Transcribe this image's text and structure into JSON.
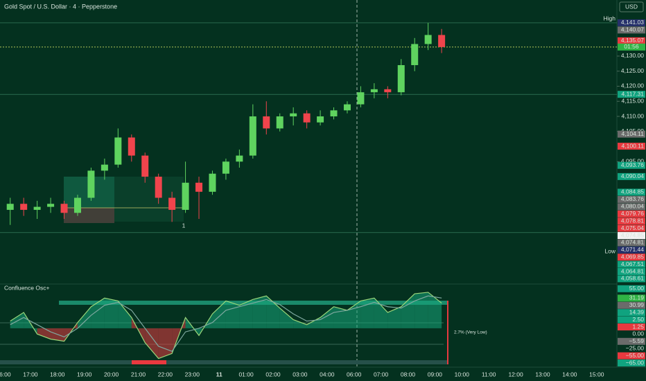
{
  "chart_data": [
    {
      "type": "candlestick",
      "title": "Gold Spot / U.S. Dollar · 4 · Pepperstone",
      "currency": "USD",
      "countdown": "01:56",
      "annotation": "1",
      "up_color": "#5fd35f",
      "down_color": "#f0444c",
      "ylim": [
        4054.4,
        4148.6
      ],
      "yticks": [
        {
          "value": 4130,
          "label": "4,130.00"
        },
        {
          "value": 4125,
          "label": "4,125.00"
        },
        {
          "value": 4120,
          "label": "4,120.00"
        },
        {
          "value": 4115,
          "label": "4,115.00"
        },
        {
          "value": 4110,
          "label": "4,110.00"
        },
        {
          "value": 4105,
          "label": "4,105.00"
        },
        {
          "value": 4095,
          "label": "4,095.00"
        }
      ],
      "xticks": [
        "16:00",
        "17:00",
        "18:00",
        "19:00",
        "20:00",
        "21:00",
        "22:00",
        "23:00",
        "11",
        "01:00",
        "02:00",
        "03:00",
        "04:00",
        "06:00",
        "07:00",
        "08:00",
        "09:00",
        "10:00",
        "11:00",
        "12:00",
        "13:00",
        "14:00",
        "15:00"
      ],
      "x": [
        "16:00",
        "16:30",
        "17:00",
        "17:30",
        "18:00",
        "18:30",
        "19:00",
        "19:30",
        "20:00",
        "20:30",
        "21:00",
        "21:30",
        "22:00",
        "22:30",
        "23:00",
        "23:30",
        "00:00",
        "00:30",
        "01:00",
        "01:30",
        "02:00",
        "02:30",
        "03:00",
        "03:30",
        "04:00",
        "04:30",
        "06:00",
        "06:30",
        "07:00",
        "07:30",
        "08:00",
        "08:30",
        "09:00"
      ],
      "open": [
        4079,
        4081,
        4079,
        4080,
        4081,
        4078,
        4083,
        4092,
        4094,
        4103,
        4097,
        4090,
        4083,
        4079,
        4088,
        4085,
        4091,
        4095,
        4097,
        4110,
        4106,
        4110,
        4111,
        4108,
        4110,
        4112,
        4114,
        4118,
        4119,
        4118,
        4127,
        4134,
        4137
      ],
      "high": [
        4083,
        4083,
        4082,
        4083,
        4082,
        4084,
        4093,
        4096,
        4106,
        4104,
        4098,
        4091,
        4085,
        4095,
        4090,
        4092,
        4096,
        4099,
        4114,
        4115,
        4111,
        4113,
        4112,
        4112,
        4113,
        4115,
        4120,
        4121,
        4120,
        4129,
        4136,
        4141,
        4139
      ],
      "low": [
        4074,
        4077,
        4076,
        4078,
        4076,
        4077,
        4082,
        4089,
        4093,
        4095,
        4088,
        4081,
        4075,
        4078,
        4076,
        4084,
        4089,
        4093,
        4096,
        4104,
        4105,
        4107,
        4106,
        4107,
        4109,
        4111,
        4113,
        4116,
        4116,
        4117,
        4125,
        4132,
        4131
      ],
      "close": [
        4081,
        4079,
        4080,
        4081,
        4078,
        4083,
        4092,
        4094,
        4103,
        4097,
        4090,
        4083,
        4079,
        4088,
        4085,
        4091,
        4095,
        4097,
        4110,
        4106,
        4110,
        4111,
        4108,
        4110,
        4112,
        4114,
        4118,
        4119,
        4118,
        4127,
        4134,
        4137,
        4133
      ],
      "levels": [
        4141.03,
        4117.31,
        4071.44
      ],
      "markers": [
        {
          "text": "High",
          "value": 4141.03
        },
        {
          "text": "Low",
          "value": 4071.44
        }
      ],
      "price_labels": [
        {
          "value": 4141.03,
          "label": "4,141.03",
          "color": "#26306b"
        },
        {
          "value": 4140.07,
          "label": "4,140.07",
          "color": "#6b6b6b"
        },
        {
          "value": 4135.07,
          "label": "4,135.07",
          "color": "#e8393f"
        },
        {
          "value": 4117.31,
          "label": "4,117.31",
          "color": "#10a37f"
        },
        {
          "value": 4104.11,
          "label": "4,104.11",
          "color": "#6b6b6b"
        },
        {
          "value": 4100.11,
          "label": "4,100.11",
          "color": "#e8393f"
        },
        {
          "value": 4093.76,
          "label": "4,093.76",
          "color": "#10a37f"
        },
        {
          "value": 4090.04,
          "label": "4,090.04",
          "color": "#10a37f"
        },
        {
          "value": 4084.85,
          "label": "4,084.85",
          "color": "#10a37f"
        },
        {
          "value": 4083.76,
          "label": "4,083.76",
          "color": "#6b6b6b"
        },
        {
          "value": 4080.04,
          "label": "4,080.04",
          "color": "#6b6b6b"
        },
        {
          "value": 4079.76,
          "label": "4,079.76",
          "color": "#e8393f"
        },
        {
          "value": 4078.81,
          "label": "4,078.81",
          "color": "#e8393f"
        },
        {
          "value": 4075.04,
          "label": "4,075.04",
          "color": "#e8393f"
        },
        {
          "value": 4074.85,
          "label": "4,074.85",
          "color": "#f2f2f2"
        },
        {
          "value": 4074.81,
          "label": "4,074.81",
          "color": "#6b6b6b"
        },
        {
          "value": 4071.44,
          "label": "4,071.44",
          "color": "#26306b"
        },
        {
          "value": 4069.85,
          "label": "4,069.85",
          "color": "#e8393f"
        },
        {
          "value": 4067.51,
          "label": "4,067.51",
          "color": "#10a37f"
        },
        {
          "value": 4064.81,
          "label": "4,064.81",
          "color": "#10a37f"
        },
        {
          "value": 4058.61,
          "label": "4,058.61",
          "color": "#10a37f"
        }
      ]
    },
    {
      "type": "line",
      "title": "Confluence Osc+",
      "annotation": "2.7% (Very Low)",
      "ylim": [
        -54,
        61.5
      ],
      "series": [
        {
          "name": "Osc",
          "color": "#9bd77a",
          "values": [
            10,
            22,
            -8,
            -15,
            -18,
            8,
            30,
            42,
            38,
            15,
            -20,
            -42,
            -35,
            15,
            -10,
            20,
            38,
            32,
            40,
            45,
            28,
            12,
            5,
            15,
            30,
            25,
            38,
            42,
            22,
            30,
            48,
            50,
            35
          ]
        },
        {
          "name": "Signal",
          "color": "#7fa9a0",
          "values": [
            5,
            15,
            5,
            -5,
            -12,
            0,
            18,
            32,
            36,
            25,
            0,
            -25,
            -32,
            -5,
            0,
            8,
            25,
            30,
            35,
            40,
            33,
            20,
            10,
            12,
            22,
            25,
            30,
            36,
            30,
            28,
            38,
            45,
            42
          ]
        }
      ],
      "price_labels": [
        {
          "value": 55,
          "label": "55.00",
          "color": "#10a37f"
        },
        {
          "value": 31.19,
          "label": "31.19",
          "color": "#2fb344"
        },
        {
          "value": 30.99,
          "label": "30.99",
          "color": "#6b6b6b"
        },
        {
          "value": 14.39,
          "label": "14.39",
          "color": "#10a37f"
        },
        {
          "value": 2.5,
          "label": "2.50",
          "color": "#10a37f"
        },
        {
          "value": 1.25,
          "label": "1.25",
          "color": "#e8393f"
        },
        {
          "value": 0,
          "label": "0.00",
          "color": "#04311f"
        },
        {
          "value": -5.59,
          "label": "−5.59",
          "color": "#6b6b6b"
        },
        {
          "value": -25,
          "label": "−25.00",
          "color": "#04311f"
        },
        {
          "value": -55,
          "label": "−55.00",
          "color": "#e8393f"
        },
        {
          "value": -65,
          "label": "−65.00",
          "color": "#10a37f"
        }
      ]
    }
  ]
}
